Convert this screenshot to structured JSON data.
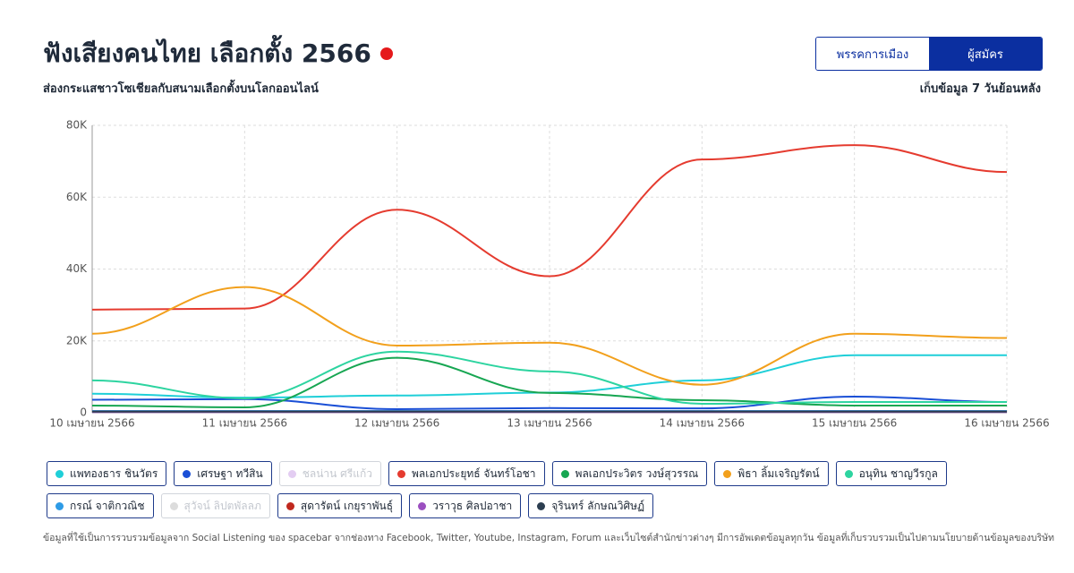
{
  "header": {
    "title": "ฟังเสียงคนไทย เลือกตั้ง 2566",
    "subtitle": "ส่องกระแสชาวโซเชียลกับสนามเลือกตั้งบนโลกออนไลน์",
    "tabs": [
      "พรรคการเมือง",
      "ผู้สมัคร"
    ],
    "active_tab": 1,
    "range_note": "เก็บข้อมูล 7 วันย้อนหลัง"
  },
  "chart_data": {
    "type": "line",
    "categories": [
      "10 เมษายน 2566",
      "11 เมษายน 2566",
      "12 เมษายน 2566",
      "13 เมษายน 2566",
      "14 เมษายน 2566",
      "15 เมษายน 2566",
      "16 เมษายน 2566"
    ],
    "ylim": [
      0,
      80000
    ],
    "yticks": [
      0,
      {
        "value": 20000,
        "label": "20K"
      },
      {
        "value": 40000,
        "label": "40K"
      },
      {
        "value": 60000,
        "label": "60K"
      },
      {
        "value": 80000,
        "label": "80K"
      }
    ],
    "grid": true,
    "series": [
      {
        "name": "แพทองธาร ชินวัตร",
        "color": "#1fcfd8",
        "visible": true,
        "values": [
          5300,
          4200,
          4800,
          5600,
          9000,
          16000,
          16000
        ]
      },
      {
        "name": "เศรษฐา ทวีสิน",
        "color": "#1a4fd6",
        "visible": true,
        "values": [
          3600,
          3800,
          1000,
          1300,
          1200,
          4500,
          3000
        ]
      },
      {
        "name": "ชลน่าน ศรีแก้ว",
        "color": "#e3cdf2",
        "visible": false,
        "values": [
          null,
          null,
          null,
          null,
          null,
          null,
          null
        ]
      },
      {
        "name": "พลเอกประยุทธ์ จันทร์โอชา",
        "color": "#e53b2f",
        "visible": true,
        "values": [
          28700,
          29000,
          56500,
          38000,
          70500,
          74500,
          67000
        ]
      },
      {
        "name": "พลเอกประวิตร วงษ์สุวรรณ",
        "color": "#17a652",
        "visible": true,
        "values": [
          2000,
          1500,
          15300,
          5500,
          3500,
          2000,
          2000
        ]
      },
      {
        "name": "พิธา ลิ้มเจริญรัตน์",
        "color": "#f2a01c",
        "visible": true,
        "values": [
          22000,
          35000,
          18700,
          19500,
          7800,
          22000,
          20800
        ]
      },
      {
        "name": "อนุทิน ชาญวีรกูล",
        "color": "#2dd4a0",
        "visible": true,
        "values": [
          9000,
          4000,
          17000,
          11500,
          2500,
          3000,
          3000
        ]
      },
      {
        "name": "กรณ์ จาติกวณิช",
        "color": "#2e9be6",
        "visible": true,
        "values": [
          500,
          500,
          500,
          500,
          500,
          500,
          500
        ]
      },
      {
        "name": "สุวัจน์ ลิปตพัลลภ",
        "color": "#dcdcdc",
        "visible": false,
        "values": [
          null,
          null,
          null,
          null,
          null,
          null,
          null
        ]
      },
      {
        "name": "สุดารัตน์ เกยุราพันธุ์",
        "color": "#c0281e",
        "visible": true,
        "values": [
          300,
          300,
          300,
          300,
          300,
          300,
          300
        ]
      },
      {
        "name": "วราวุธ ศิลปอาชา",
        "color": "#9b4fc0",
        "visible": true,
        "values": [
          200,
          200,
          200,
          200,
          200,
          200,
          200
        ]
      },
      {
        "name": "จุรินทร์ ลักษณวิศิษฏ์",
        "color": "#2c3e50",
        "visible": true,
        "values": [
          300,
          300,
          300,
          300,
          300,
          300,
          300
        ]
      }
    ]
  },
  "footnote": "ข้อมูลที่ใช้เป็นการรวบรวมข้อมูลจาก Social Listening ของ spacebar จากช่องทาง Facebook, Twitter, Youtube, Instagram, Forum และเว็บไซต์สำนักข่าวต่างๆ มีการอัพเดตข้อมูลทุกวัน ข้อมูลที่เก็บรวบรวมเป็นไปตามนโยบายด้านข้อมูลของบริษัท"
}
